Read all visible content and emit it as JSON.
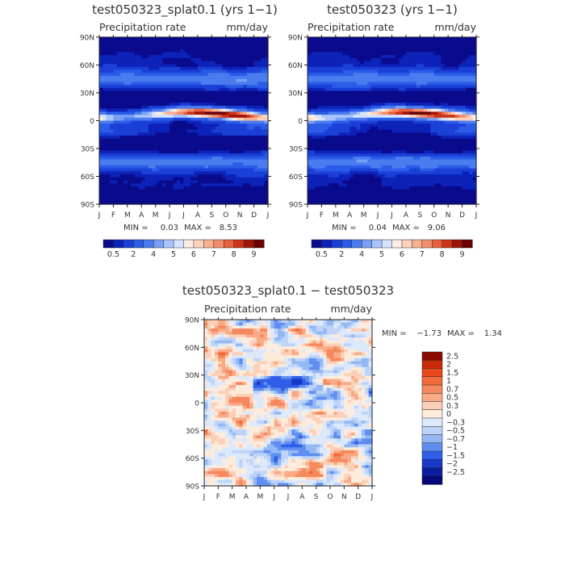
{
  "chart_data": [
    {
      "type": "heatmap",
      "title": "test050323_splat0.1 (yrs 1−1)",
      "subtitle_left": "Precipitation rate",
      "subtitle_right": "mm/day",
      "x_ticks": [
        "J",
        "F",
        "M",
        "A",
        "M",
        "J",
        "J",
        "A",
        "S",
        "O",
        "N",
        "D",
        "J"
      ],
      "y_ticks": [
        "90N",
        "60N",
        "30N",
        "0",
        "30S",
        "60S",
        "90S"
      ],
      "y_range": [
        -90,
        90
      ],
      "min_label": "MIN =",
      "min_value": "0.03",
      "max_label": "MAX =",
      "max_value": "8.53",
      "field": "a",
      "colorbar": {
        "orientation": "horizontal",
        "levels": [
          0.5,
          1,
          2,
          3,
          4,
          4.5,
          5,
          5.5,
          6,
          6.5,
          7,
          7.5,
          8,
          8.5,
          9
        ],
        "labels": [
          "0.5",
          "2",
          "4",
          "5",
          "6",
          "7",
          "8",
          "9"
        ],
        "colors": [
          "#0a0a8c",
          "#0c22b8",
          "#1a40d8",
          "#2a5ce8",
          "#4a7cf0",
          "#7aa0f5",
          "#a8c4fa",
          "#d4e4fd",
          "#fdeee4",
          "#fbd2bc",
          "#f8b092",
          "#f38c6c",
          "#e8603e",
          "#cc3418",
          "#a01408",
          "#6e0000"
        ]
      }
    },
    {
      "type": "heatmap",
      "title": "test050323 (yrs 1−1)",
      "subtitle_left": "Precipitation rate",
      "subtitle_right": "mm/day",
      "x_ticks": [
        "J",
        "F",
        "M",
        "A",
        "M",
        "J",
        "J",
        "A",
        "S",
        "O",
        "N",
        "D",
        "J"
      ],
      "y_ticks": [
        "90N",
        "60N",
        "30N",
        "0",
        "30S",
        "60S",
        "90S"
      ],
      "y_range": [
        -90,
        90
      ],
      "min_label": "MIN =",
      "min_value": "0.04",
      "max_label": "MAX =",
      "max_value": "9.06",
      "field": "b",
      "colorbar": {
        "orientation": "horizontal",
        "levels": [
          0.5,
          1,
          2,
          3,
          4,
          4.5,
          5,
          5.5,
          6,
          6.5,
          7,
          7.5,
          8,
          8.5,
          9
        ],
        "labels": [
          "0.5",
          "2",
          "4",
          "5",
          "6",
          "7",
          "8",
          "9"
        ],
        "colors": [
          "#0a0a8c",
          "#0c22b8",
          "#1a40d8",
          "#2a5ce8",
          "#4a7cf0",
          "#7aa0f5",
          "#a8c4fa",
          "#d4e4fd",
          "#fdeee4",
          "#fbd2bc",
          "#f8b092",
          "#f38c6c",
          "#e8603e",
          "#cc3418",
          "#a01408",
          "#6e0000"
        ]
      }
    },
    {
      "type": "heatmap",
      "title": "test050323_splat0.1 − test050323",
      "subtitle_left": "Precipitation rate",
      "subtitle_right": "mm/day",
      "x_ticks": [
        "J",
        "F",
        "M",
        "A",
        "M",
        "J",
        "J",
        "A",
        "S",
        "O",
        "N",
        "D",
        "J"
      ],
      "y_ticks": [
        "90N",
        "60N",
        "30N",
        "0",
        "30S",
        "60S",
        "90S"
      ],
      "y_range": [
        -90,
        90
      ],
      "min_label": "MIN =",
      "min_value": "−1.73",
      "max_label": "MAX =",
      "max_value": "1.34",
      "field": "diff",
      "colorbar": {
        "orientation": "vertical",
        "levels": [
          2.5,
          2,
          1.5,
          1,
          0.7,
          0.5,
          0.3,
          0,
          -0.3,
          -0.5,
          -0.7,
          -1,
          -1.5,
          -2,
          -2.5
        ],
        "labels": [
          "2.5",
          "2",
          "1.5",
          "1",
          "0.7",
          "0.5",
          "0.3",
          "0",
          "−0.3",
          "−0.5",
          "−0.7",
          "−1",
          "−1.5",
          "−2",
          "−2.5"
        ],
        "colors": [
          "#8a0a00",
          "#c82a0a",
          "#e8481c",
          "#f26a3a",
          "#f5885c",
          "#f8aa86",
          "#fbd0b8",
          "#fdebdc",
          "#dde9fb",
          "#bdd4f8",
          "#94b8f3",
          "#5f8ef0",
          "#2f5ee8",
          "#1838c8",
          "#0c1ca0",
          "#06087a"
        ]
      }
    }
  ]
}
